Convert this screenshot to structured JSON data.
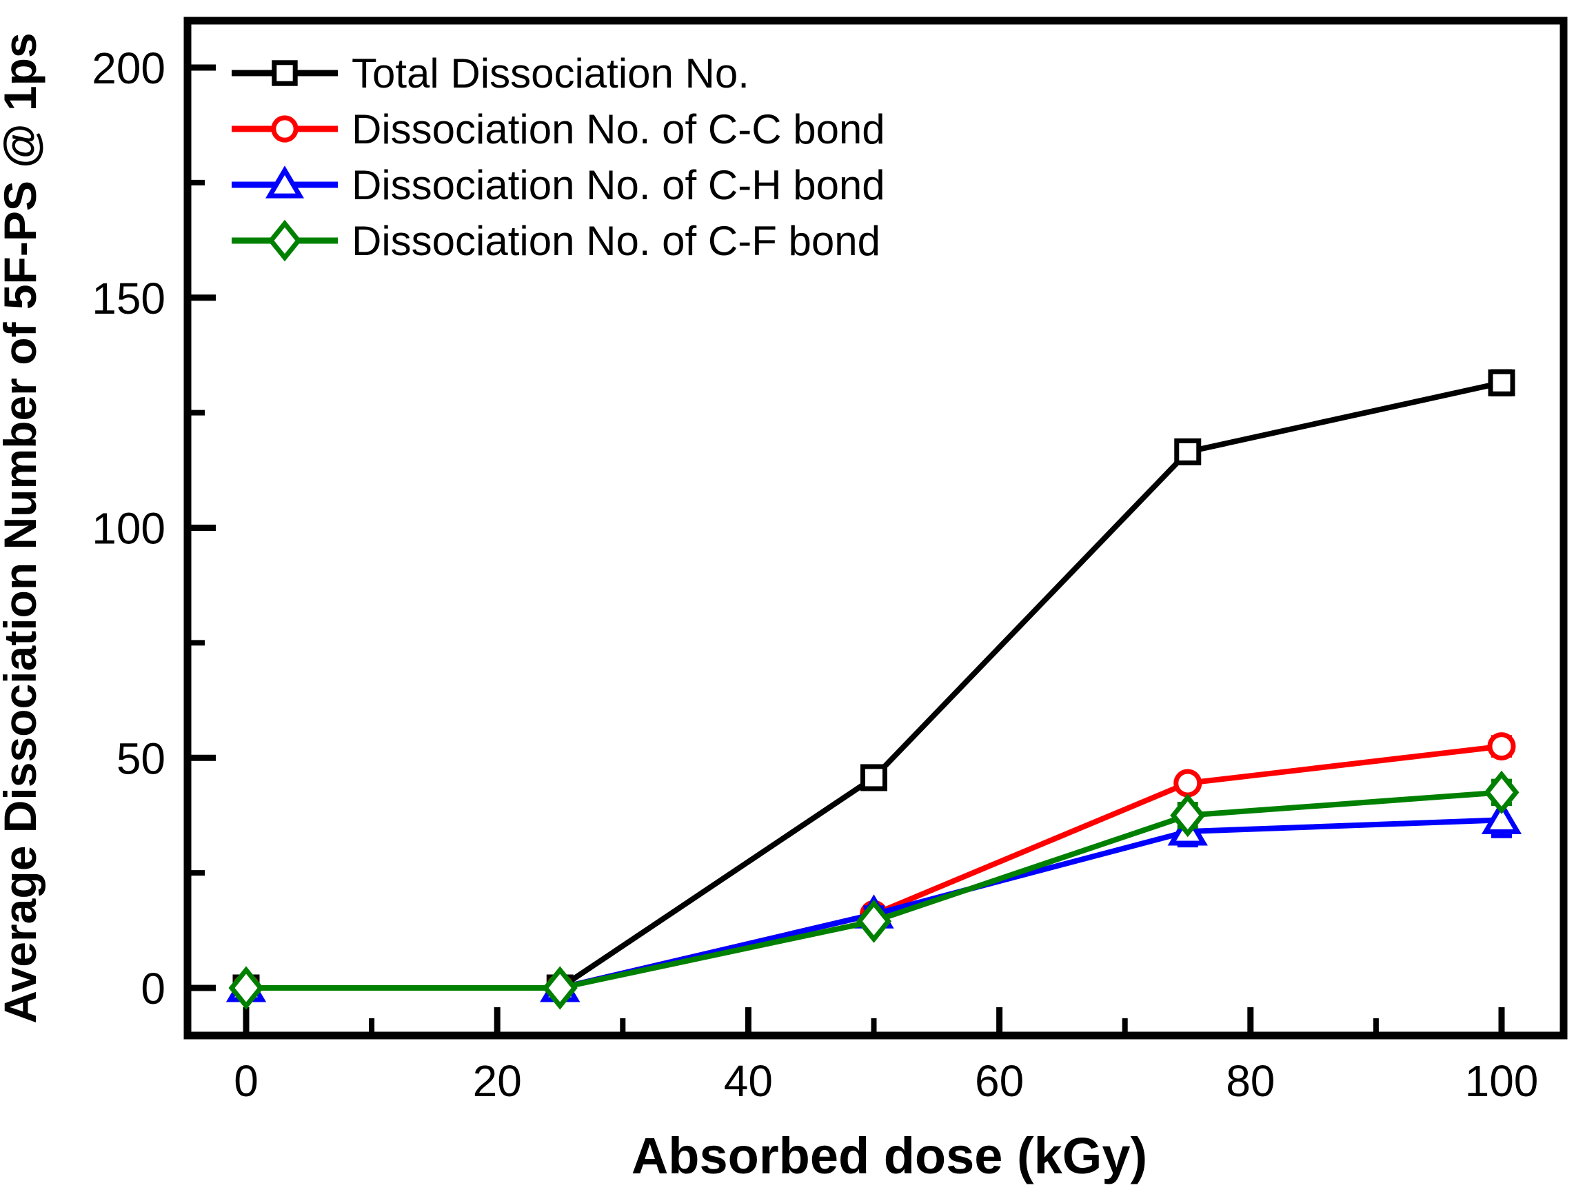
{
  "chart_data": {
    "type": "line",
    "title": "",
    "xlabel": "Absorbed dose (kGy)",
    "ylabel": "Average Dissociation Number of 5F-PS @ 1ps",
    "x": [
      0,
      25,
      50,
      75,
      100
    ],
    "series": [
      {
        "name": "Total Dissociation No.",
        "color": "#000000",
        "marker": "square",
        "values": [
          0,
          0,
          45.7,
          116.5,
          131.5
        ],
        "errors": [
          0,
          0,
          2,
          2,
          2.5
        ]
      },
      {
        "name": "Dissociation No. of C-C bond",
        "color": "#ff0000",
        "marker": "circle",
        "values": [
          0,
          0,
          16,
          44.5,
          52.5
        ],
        "errors": [
          0,
          0,
          1,
          1.5,
          2
        ]
      },
      {
        "name": "Dissociation No. of C-H bond",
        "color": "#0000ff",
        "marker": "triangle",
        "values": [
          0,
          0,
          16,
          34,
          36.5
        ],
        "errors": [
          0,
          0,
          1.5,
          3,
          3.5
        ]
      },
      {
        "name": "Dissociation No. of C-F bond",
        "color": "#008000",
        "marker": "diamond",
        "values": [
          0,
          0,
          14.5,
          37.5,
          42.5
        ],
        "errors": [
          0,
          0,
          1.5,
          2.5,
          2.5
        ]
      }
    ],
    "x_axis": {
      "major_ticks": [
        0,
        20,
        40,
        60,
        80,
        100
      ],
      "minor_ticks": [
        10,
        30,
        50,
        70,
        90
      ],
      "lim": [
        -5,
        105
      ]
    },
    "y_axis": {
      "major_ticks": [
        0,
        50,
        100,
        150,
        200
      ],
      "minor_ticks": [
        25,
        75,
        125,
        175
      ],
      "lim": [
        -10,
        210
      ]
    },
    "legend_position": "top-left",
    "grid": false,
    "frame_color": "#000000",
    "background_color": "#ffffff"
  }
}
